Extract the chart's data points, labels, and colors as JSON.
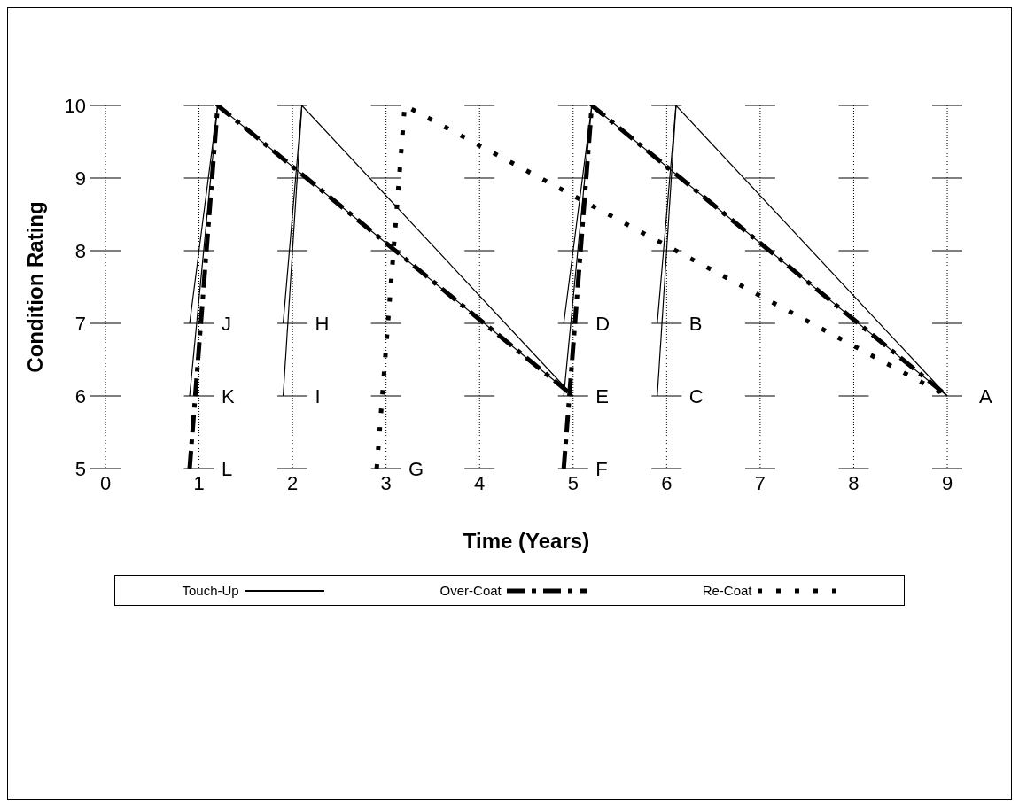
{
  "chart_data": {
    "type": "line",
    "xlabel": "Time (Years)",
    "ylabel": "Condition Rating",
    "xlim": [
      0,
      9
    ],
    "ylim": [
      5,
      10
    ],
    "xticks": [
      0,
      1,
      2,
      3,
      4,
      5,
      6,
      7,
      8,
      9
    ],
    "yticks": [
      5,
      6,
      7,
      8,
      9,
      10
    ],
    "grid": true,
    "legend": "bottom",
    "marker": "none",
    "series": [
      {
        "name": "Touch-Up",
        "color": "#000000",
        "line_style": "solid",
        "x": [
          0.9,
          1.2,
          5
        ],
        "values": [
          7,
          10,
          6
        ]
      },
      {
        "name": "Over-Coat",
        "color": "#000000",
        "line_style": "dashdot",
        "x": [
          0.9,
          1.2,
          5
        ],
        "values": [
          5,
          10,
          6
        ]
      },
      {
        "name": "Re-Coat",
        "color": "#000000",
        "line_style": "dotted",
        "x": [
          2.9,
          3.2,
          9
        ],
        "values": [
          5,
          10,
          6
        ]
      },
      {
        "color": "#000000",
        "line_style": "solid",
        "x": [
          0.9,
          1.2
        ],
        "values": [
          6,
          10
        ]
      },
      {
        "color": "#000000",
        "line_style": "solid",
        "x": [
          1.9,
          2.1,
          5
        ],
        "values": [
          7,
          10,
          6
        ]
      },
      {
        "color": "#000000",
        "line_style": "solid",
        "x": [
          1.9,
          2.1
        ],
        "values": [
          6,
          10
        ]
      },
      {
        "color": "#000000",
        "line_style": "solid",
        "x": [
          4.9,
          5.2,
          9
        ],
        "values": [
          7,
          10,
          6
        ]
      },
      {
        "color": "#000000",
        "line_style": "solid",
        "x": [
          4.9,
          5.2
        ],
        "values": [
          6,
          10
        ]
      },
      {
        "color": "#000000",
        "line_style": "solid",
        "x": [
          5.9,
          6.1,
          9
        ],
        "values": [
          7,
          10,
          6
        ]
      },
      {
        "color": "#000000",
        "line_style": "solid",
        "x": [
          5.9,
          6.1
        ],
        "values": [
          6,
          10
        ]
      },
      {
        "color": "#000000",
        "line_style": "dashdot",
        "x": [
          4.9,
          5.2,
          9
        ],
        "values": [
          5,
          10,
          6
        ]
      }
    ],
    "annotations": [
      {
        "text": "J",
        "x": 0.9,
        "y": 7
      },
      {
        "text": "K",
        "x": 0.9,
        "y": 6
      },
      {
        "text": "L",
        "x": 0.9,
        "y": 5
      },
      {
        "text": "H",
        "x": 1.9,
        "y": 7
      },
      {
        "text": "I",
        "x": 1.9,
        "y": 6
      },
      {
        "text": "G",
        "x": 2.9,
        "y": 5
      },
      {
        "text": "D",
        "x": 4.9,
        "y": 7
      },
      {
        "text": "E",
        "x": 4.9,
        "y": 6
      },
      {
        "text": "F",
        "x": 4.9,
        "y": 5
      },
      {
        "text": "B",
        "x": 5.9,
        "y": 7
      },
      {
        "text": "C",
        "x": 5.9,
        "y": 6
      },
      {
        "text": "A",
        "x": 9,
        "y": 6
      }
    ]
  }
}
